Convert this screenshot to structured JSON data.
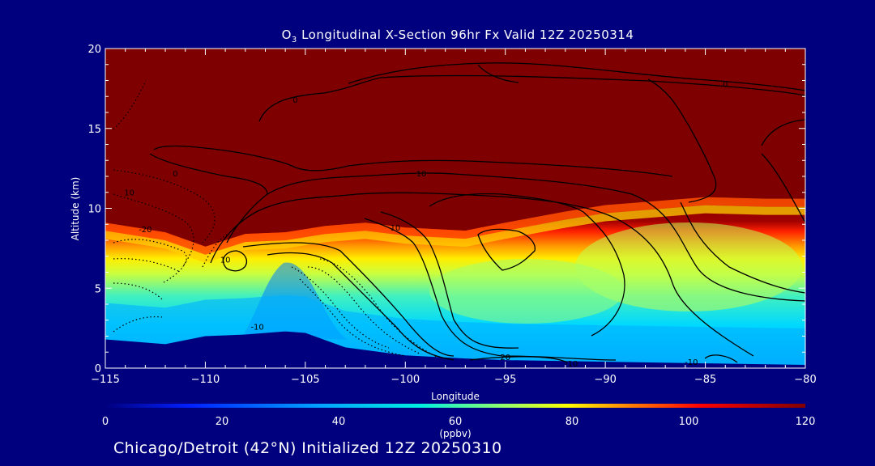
{
  "chart_data": {
    "type": "heatmap",
    "title_prefix": "O",
    "title_sub": "3",
    "title_rest": " Longitudinal X-Section 96hr  Fx Valid 12Z 20250314",
    "xlabel": "Longitude",
    "ylabel": "Altitude (km)",
    "xlim": [
      -115,
      -80
    ],
    "ylim": [
      0,
      20
    ],
    "xticks": [
      -115,
      -110,
      -105,
      -100,
      -95,
      -90,
      -85,
      -80
    ],
    "yticks": [
      0,
      5,
      10,
      15,
      20
    ],
    "colorbar": {
      "ticks": [
        0,
        20,
        40,
        60,
        80,
        100,
        120
      ],
      "label": "(ppbv)",
      "range": [
        0,
        120
      ],
      "colors": [
        "#00007f",
        "#0030ff",
        "#00b0ff",
        "#00f0e0",
        "#a0ff60",
        "#ffff00",
        "#ff8000",
        "#ff0000",
        "#800000"
      ]
    },
    "fields": {
      "terrain_km": {
        "x": [
          -115,
          -112,
          -110,
          -108,
          -106,
          -105,
          -103,
          -100,
          -97,
          -95,
          -90,
          -85,
          -80
        ],
        "y": [
          1.8,
          1.5,
          2.0,
          2.1,
          2.3,
          2.2,
          1.3,
          0.8,
          0.6,
          0.5,
          0.4,
          0.3,
          0.2
        ]
      },
      "stratosphere_base_km": {
        "x": [
          -115,
          -112,
          -110,
          -108,
          -106,
          -104,
          -102,
          -100,
          -97,
          -95,
          -92,
          -90,
          -87,
          -85,
          -82,
          -80
        ],
        "y": [
          9.1,
          8.5,
          7.6,
          8.4,
          8.5,
          8.9,
          9.1,
          8.8,
          8.6,
          9.1,
          9.8,
          10.2,
          10.5,
          10.7,
          10.6,
          10.6
        ]
      }
    },
    "contour_labels": [
      {
        "text": "0",
        "lon": -111.5,
        "alt": 12.0
      },
      {
        "text": "0",
        "lon": -105.5,
        "alt": 16.6
      },
      {
        "text": "0",
        "lon": -84.0,
        "alt": 17.6
      },
      {
        "text": "10",
        "lon": -99.2,
        "alt": 12.0
      },
      {
        "text": "10",
        "lon": -113.8,
        "alt": 10.8
      },
      {
        "text": "10",
        "lon": -109.0,
        "alt": 6.6
      },
      {
        "text": "10",
        "lon": -100.5,
        "alt": 8.6
      },
      {
        "text": "-10",
        "lon": -107.4,
        "alt": 2.4
      },
      {
        "text": "-10",
        "lon": -91.7,
        "alt": 0.1
      },
      {
        "text": "-10",
        "lon": -85.7,
        "alt": 0.2
      },
      {
        "text": "-20",
        "lon": -113.0,
        "alt": 8.5
      },
      {
        "text": "20",
        "lon": -95.0,
        "alt": 0.5
      }
    ]
  },
  "footer": "Chicago/Detroit (42°N) Initialized 12Z 20250310"
}
